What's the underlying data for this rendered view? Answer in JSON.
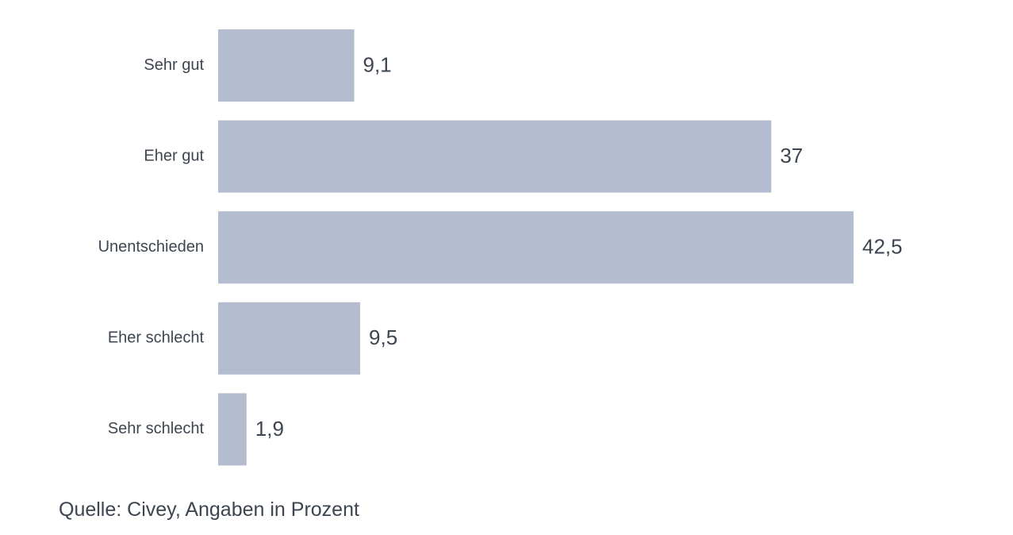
{
  "chart_data": {
    "type": "bar",
    "orientation": "horizontal",
    "categories": [
      "Sehr gut",
      "Eher gut",
      "Unentschieden",
      "Eher schlecht",
      "Sehr schlecht"
    ],
    "values": [
      9.1,
      37,
      42.5,
      9.5,
      1.9
    ],
    "value_labels": [
      "9,1",
      "37",
      "42,5",
      "9,5",
      "1,9"
    ],
    "bar_color": "#b3bdcf",
    "text_color": "#3d4650",
    "grid": false,
    "legend": "none",
    "xlim": [
      0,
      42.5
    ]
  },
  "source": "Quelle: Civey, Angaben in Prozent"
}
